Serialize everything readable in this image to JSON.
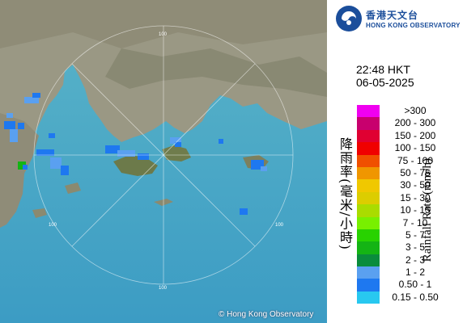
{
  "header": {
    "logo_zh": "香港天文台",
    "logo_en": "HONG KONG OBSERVATORY"
  },
  "timestamp": {
    "time": "22:48 HKT",
    "date": "06-05-2025"
  },
  "titles": {
    "zh": "降雨率(毫米/小時)",
    "en": "Rainfall Rate (mm/h)"
  },
  "legend": [
    {
      "label": ">300",
      "color": "#f000f0"
    },
    {
      "label": "200 - 300",
      "color": "#c8006e"
    },
    {
      "label": "150 - 200",
      "color": "#e00032"
    },
    {
      "label": "100 - 150",
      "color": "#f00000"
    },
    {
      "label": "75 - 100",
      "color": "#f05000"
    },
    {
      "label": "50 - 75",
      "color": "#f09600"
    },
    {
      "label": "30 - 50",
      "color": "#f0c800"
    },
    {
      "label": "15 - 30",
      "color": "#dccd00"
    },
    {
      "label": "10 - 15",
      "color": "#aadc00"
    },
    {
      "label": "7 - 10",
      "color": "#78f000"
    },
    {
      "label": "5 - 7",
      "color": "#28d200"
    },
    {
      "label": "3 - 5",
      "color": "#14b414"
    },
    {
      "label": "2 - 3",
      "color": "#0a8c3c"
    },
    {
      "label": "1 - 2",
      "color": "#5aa0f0"
    },
    {
      "label": "0.50 - 1",
      "color": "#1e78f0"
    },
    {
      "label": "0.15 - 0.50",
      "color": "#28c8f0"
    }
  ],
  "map": {
    "range_ring_labels": [
      "100",
      "100",
      "100",
      "100"
    ],
    "copyright": "© Hong Kong Observatory"
  }
}
